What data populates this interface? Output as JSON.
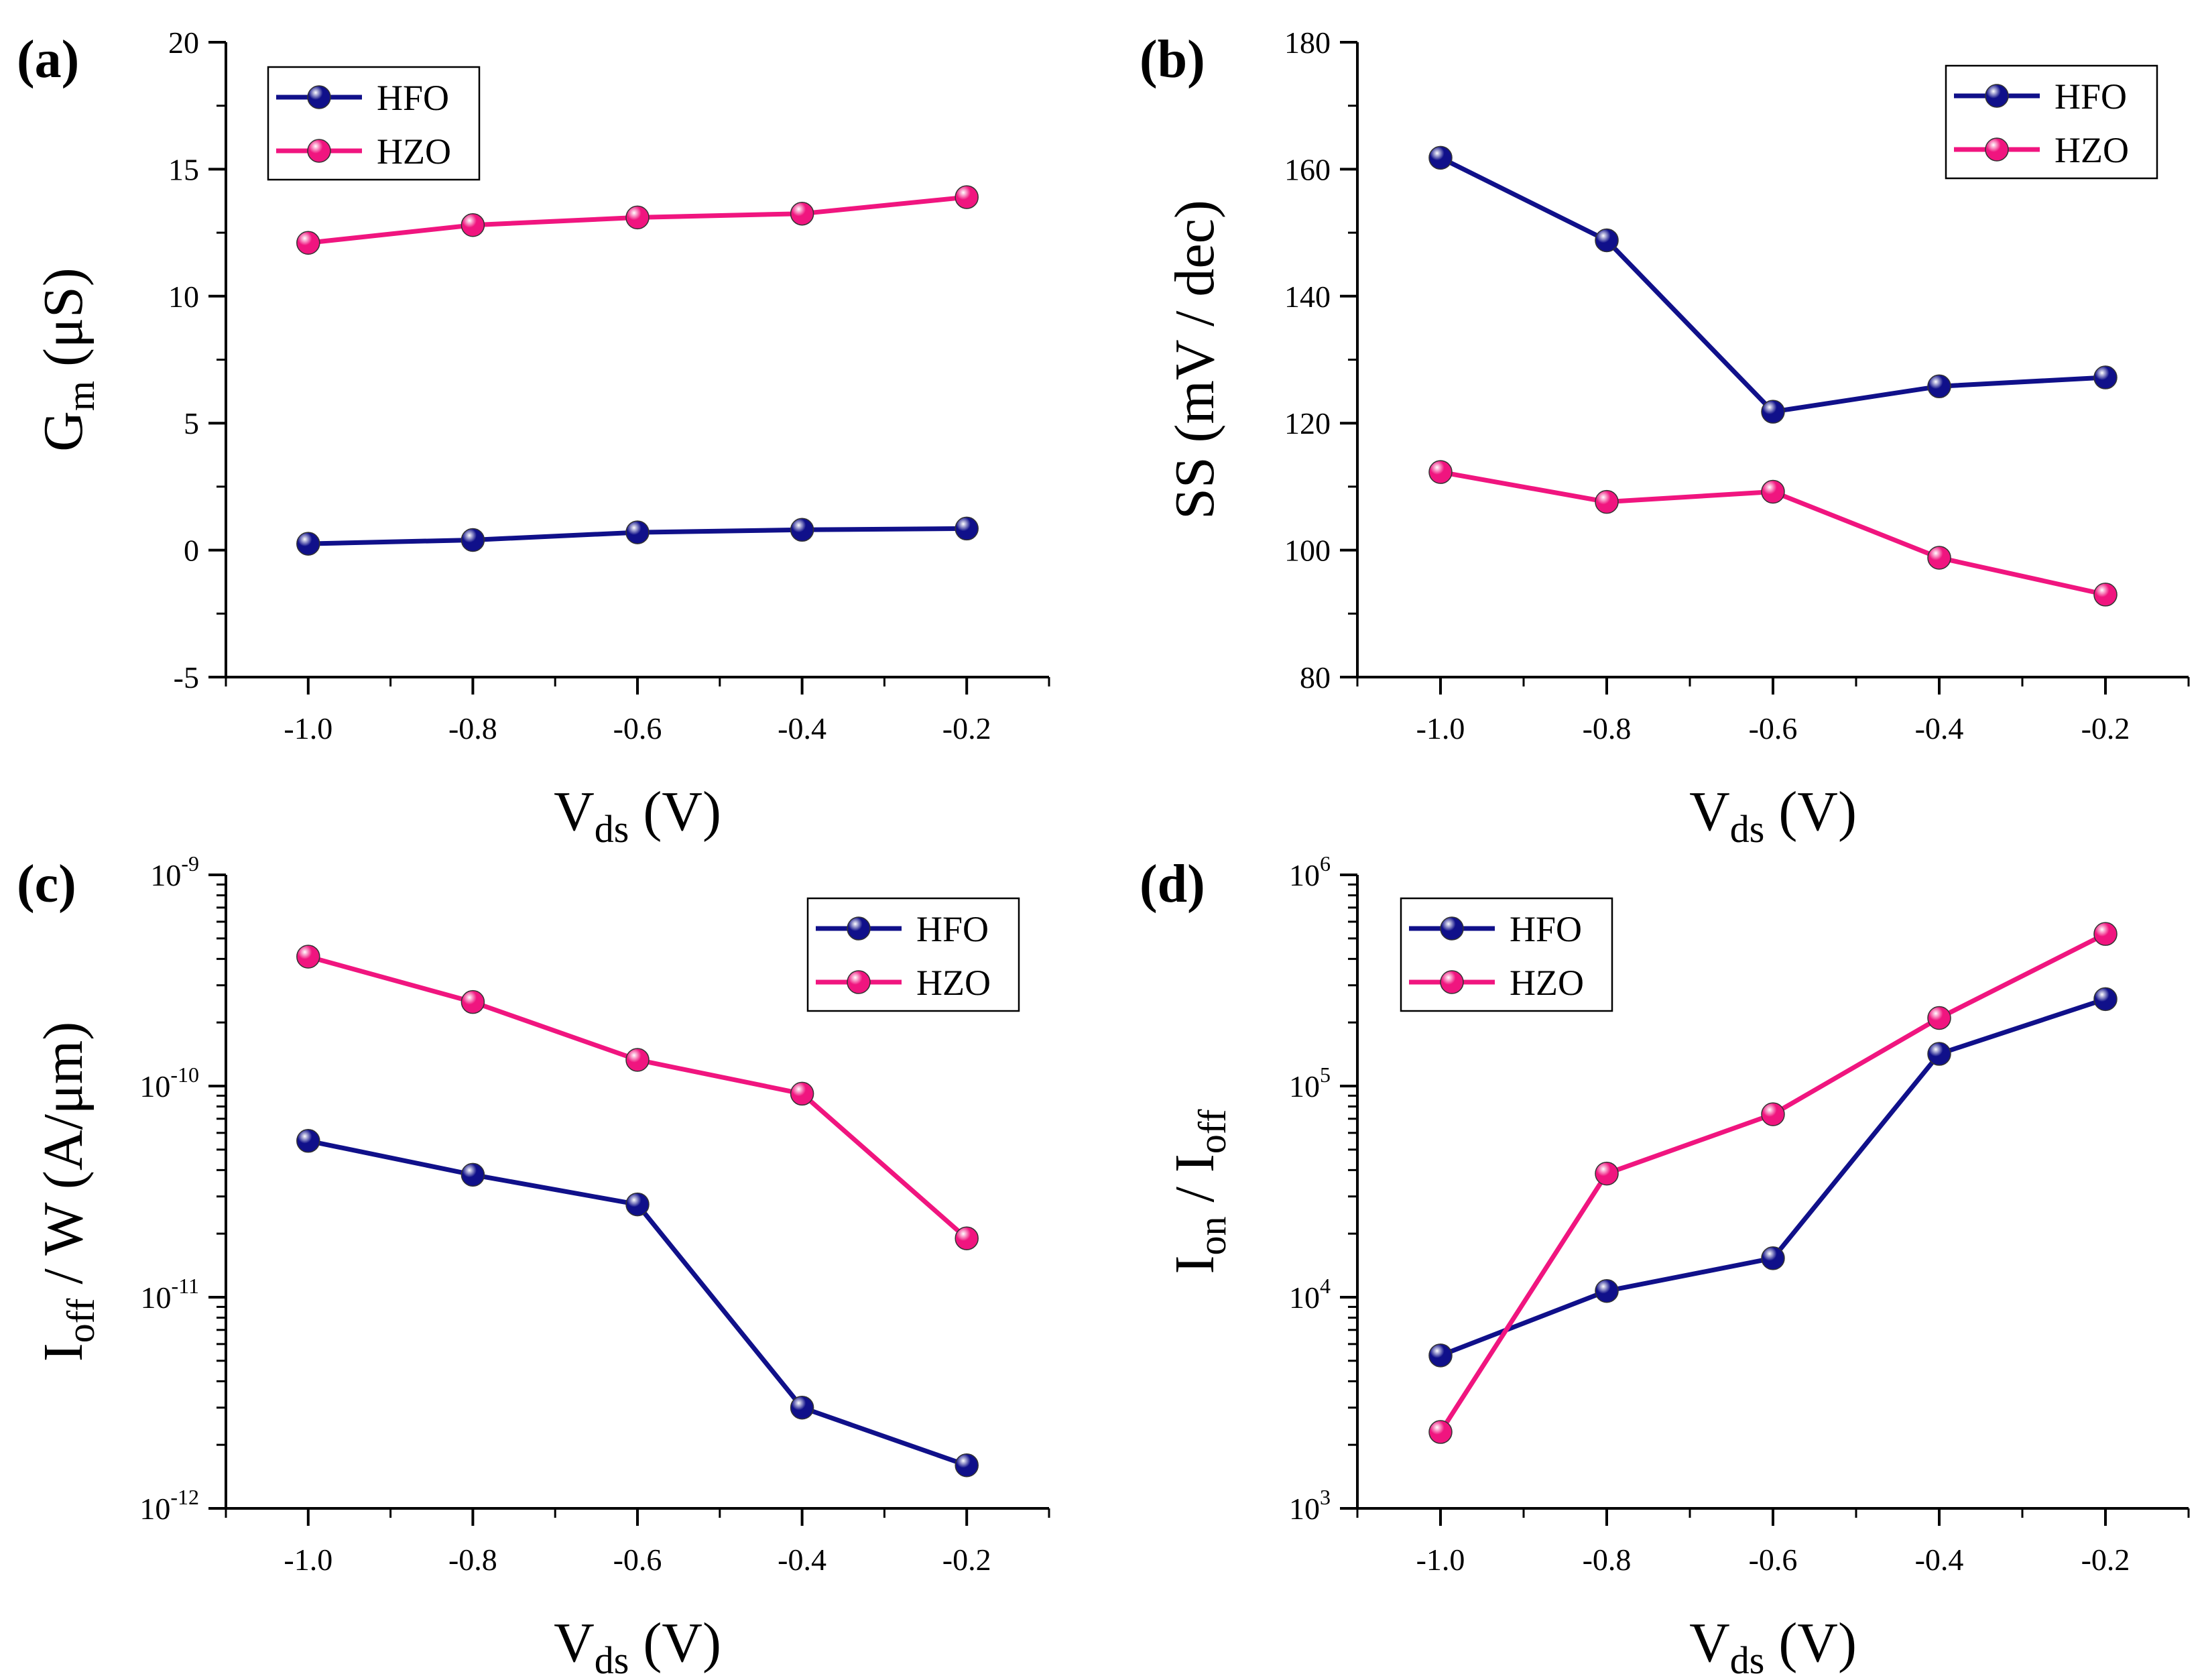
{
  "colors": {
    "HFO": "#10108a",
    "HZO": "#f0157f",
    "axis": "#000000"
  },
  "chart_data": [
    {
      "id": "a",
      "panel_label": "(a)",
      "type": "line",
      "scale": "linear",
      "xlabel": {
        "main": "V",
        "sub": "ds",
        "tail": " (V)"
      },
      "ylabel": {
        "main": "G",
        "sub": "m",
        "tail": " (μS)"
      },
      "xlim": [
        -1.1,
        -0.1
      ],
      "ylim": [
        -5,
        20
      ],
      "xticks": [
        -1.0,
        -0.8,
        -0.6,
        -0.4,
        -0.2
      ],
      "xtick_labels": [
        "-1.0",
        "-0.8",
        "-0.6",
        "-0.4",
        "-0.2"
      ],
      "yticks": [
        -5,
        0,
        5,
        10,
        15,
        20
      ],
      "ytick_labels": [
        "-5",
        "0",
        "5",
        "10",
        "15",
        "20"
      ],
      "legend_position": "top-left",
      "x": [
        -1.0,
        -0.8,
        -0.6,
        -0.4,
        -0.2
      ],
      "series": [
        {
          "name": "HFO",
          "values": [
            0.25,
            0.4,
            0.7,
            0.8,
            0.85
          ]
        },
        {
          "name": "HZO",
          "values": [
            12.1,
            12.8,
            13.1,
            13.25,
            13.9
          ]
        }
      ]
    },
    {
      "id": "b",
      "panel_label": "(b)",
      "type": "line",
      "scale": "linear",
      "xlabel": {
        "main": "V",
        "sub": "ds",
        "tail": " (V)"
      },
      "ylabel": {
        "main": "SS (mV / dec)",
        "sub": "",
        "tail": ""
      },
      "xlim": [
        -1.1,
        -0.1
      ],
      "ylim": [
        80,
        180
      ],
      "xticks": [
        -1.0,
        -0.8,
        -0.6,
        -0.4,
        -0.2
      ],
      "xtick_labels": [
        "-1.0",
        "-0.8",
        "-0.6",
        "-0.4",
        "-0.2"
      ],
      "yticks": [
        80,
        100,
        120,
        140,
        160,
        180
      ],
      "ytick_labels": [
        "80",
        "100",
        "120",
        "140",
        "160",
        "180"
      ],
      "legend_position": "top-right",
      "x": [
        -1.0,
        -0.8,
        -0.6,
        -0.4,
        -0.2
      ],
      "series": [
        {
          "name": "HFO",
          "values": [
            161.8,
            148.8,
            121.8,
            125.8,
            127.2
          ]
        },
        {
          "name": "HZO",
          "values": [
            112.3,
            107.6,
            109.2,
            98.8,
            93.0
          ]
        }
      ]
    },
    {
      "id": "c",
      "panel_label": "(c)",
      "type": "line",
      "scale": "log",
      "xlabel": {
        "main": "V",
        "sub": "ds",
        "tail": " (V)"
      },
      "ylabel": {
        "main": "I",
        "sub": "off",
        "tail": " / W (A/μm)"
      },
      "xlim": [
        -1.1,
        -0.1
      ],
      "ylim": [
        1e-12,
        1e-09
      ],
      "xticks": [
        -1.0,
        -0.8,
        -0.6,
        -0.4,
        -0.2
      ],
      "xtick_labels": [
        "-1.0",
        "-0.8",
        "-0.6",
        "-0.4",
        "-0.2"
      ],
      "yticks": [
        1e-12,
        1e-11,
        1e-10,
        1e-09
      ],
      "ytick_labels": [
        {
          "base": "10",
          "exp": "-12"
        },
        {
          "base": "10",
          "exp": "-11"
        },
        {
          "base": "10",
          "exp": "-10"
        },
        {
          "base": "10",
          "exp": "-9"
        }
      ],
      "legend_position": "top-right",
      "x": [
        -1.0,
        -0.8,
        -0.6,
        -0.4,
        -0.2
      ],
      "series": [
        {
          "name": "HFO",
          "values": [
            5.5e-11,
            3.8e-11,
            2.75e-11,
            3e-12,
            1.6e-12
          ]
        },
        {
          "name": "HZO",
          "values": [
            4.1e-10,
            2.5e-10,
            1.33e-10,
            9.2e-11,
            1.9e-11
          ]
        }
      ]
    },
    {
      "id": "d",
      "panel_label": "(d)",
      "type": "line",
      "scale": "log",
      "xlabel": {
        "main": "V",
        "sub": "ds",
        "tail": " (V)"
      },
      "ylabel": {
        "main": "I",
        "sub": "on",
        "tail": " / I",
        "sub2": "off"
      },
      "xlim": [
        -1.1,
        -0.1
      ],
      "ylim": [
        1000,
        1000000
      ],
      "xticks": [
        -1.0,
        -0.8,
        -0.6,
        -0.4,
        -0.2
      ],
      "xtick_labels": [
        "-1.0",
        "-0.8",
        "-0.6",
        "-0.4",
        "-0.2"
      ],
      "yticks": [
        1000,
        10000,
        100000,
        1000000
      ],
      "ytick_labels": [
        {
          "base": "10",
          "exp": "3"
        },
        {
          "base": "10",
          "exp": "4"
        },
        {
          "base": "10",
          "exp": "5"
        },
        {
          "base": "10",
          "exp": "6"
        }
      ],
      "legend_position": "top-left",
      "x": [
        -1.0,
        -0.8,
        -0.6,
        -0.4,
        -0.2
      ],
      "series": [
        {
          "name": "HFO",
          "values": [
            5300,
            10700,
            15300,
            142000,
            258000
          ]
        },
        {
          "name": "HZO",
          "values": [
            2300,
            38500,
            73500,
            210000,
            525000
          ]
        }
      ]
    }
  ]
}
